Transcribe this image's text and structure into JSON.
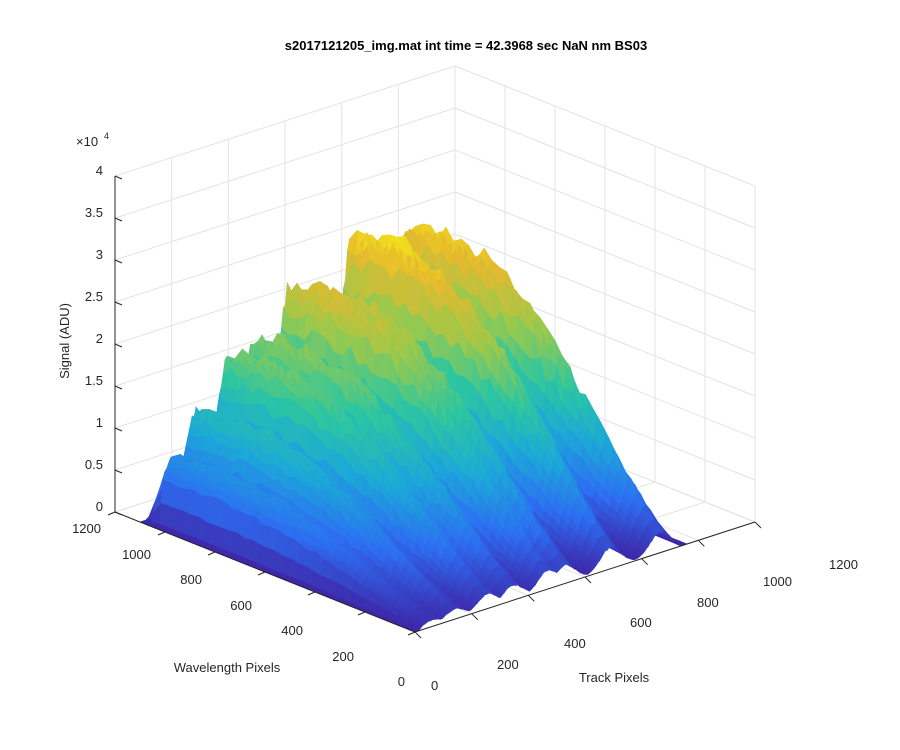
{
  "chart_data": {
    "type": "surface3d",
    "title": "s2017121205_img.mat int time = 42.3968 sec  NaN nm BS03",
    "xlabel": "Track Pixels",
    "ylabel": "Wavelength Pixels",
    "zlabel": "Signal (ADU)",
    "exponent_label": "×10",
    "exponent_power": "4",
    "x_ticks": [
      "0",
      "200",
      "400",
      "600",
      "800",
      "1000",
      "1200"
    ],
    "y_ticks": [
      "0",
      "200",
      "400",
      "600",
      "800",
      "1000",
      "1200"
    ],
    "z_ticks": [
      "0",
      "0.5",
      "1",
      "1.5",
      "2",
      "2.5",
      "3",
      "3.5",
      "4"
    ],
    "xlim": [
      0,
      1200
    ],
    "ylim": [
      0,
      1200
    ],
    "zlim": [
      0,
      40000
    ],
    "grid": true,
    "colormap": "parula",
    "colors": [
      "#3e26a8",
      "#2d6ef2",
      "#1ca8d8",
      "#2dc6a0",
      "#9bc94b",
      "#e6b92e",
      "#f9fb0e"
    ],
    "ridges": [
      {
        "track_center": 60,
        "peak_signal": 9000
      },
      {
        "track_center": 140,
        "peak_signal": 14000
      },
      {
        "track_center": 255,
        "peak_signal": 20000
      },
      {
        "track_center": 345,
        "peak_signal": 21000
      },
      {
        "track_center": 470,
        "peak_signal": 26000
      },
      {
        "track_center": 530,
        "peak_signal": 25000
      },
      {
        "track_center": 690,
        "peak_signal": 30000
      },
      {
        "track_center": 865,
        "peak_signal": 29000
      }
    ]
  }
}
